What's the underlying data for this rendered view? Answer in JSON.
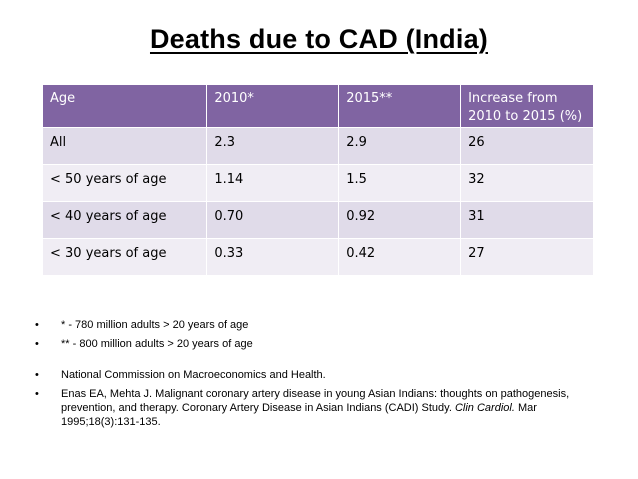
{
  "title": "Deaths due to CAD (India)",
  "table": {
    "headers": [
      "Age",
      "2010*",
      "2015**",
      "Increase from 2010 to 2015 (%)"
    ],
    "rows": [
      [
        "All",
        "2.3",
        "2.9",
        "26"
      ],
      [
        "< 50 years of age",
        "1.14",
        "1.5",
        "32"
      ],
      [
        "< 40 years of age",
        "0.70",
        "0.92",
        "31"
      ],
      [
        "< 30 years of age",
        "0.33",
        "0.42",
        "27"
      ]
    ]
  },
  "colors": {
    "header_bg": "#8064a2",
    "row_odd_bg": "#e0dbe9",
    "row_even_bg": "#f0edf4"
  },
  "notes": {
    "bullet": "•",
    "footnote_2010": "* - 780 million adults > 20 years of age",
    "footnote_2015": "** - 800 million adults > 20 years of age",
    "ref_1": "National Commission on Macroeconomics and Health.",
    "ref_2_pre": "Enas EA, Mehta J. Malignant coronary artery disease in young Asian Indians: thoughts on pathogenesis, prevention, and therapy. Coronary Artery Disease in Asian Indians (CADI) Study. ",
    "ref_2_journal": "Clin Cardiol.",
    "ref_2_post": " Mar 1995;18(3):131-135."
  }
}
